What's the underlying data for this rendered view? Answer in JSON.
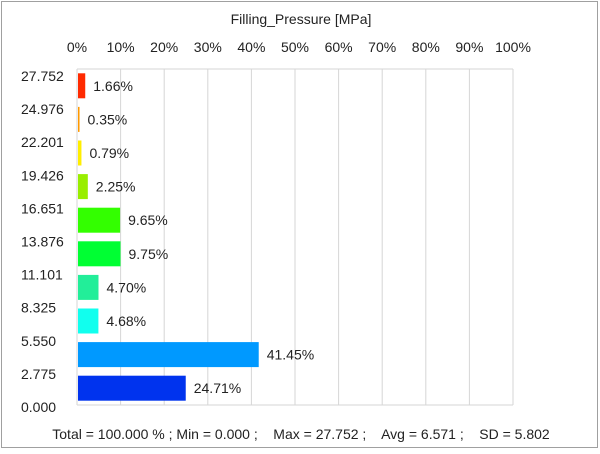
{
  "chart_data": {
    "type": "bar",
    "orientation": "horizontal",
    "title": "Filling_Pressure [MPa]",
    "x_ticks": [
      "0%",
      "10%",
      "20%",
      "30%",
      "40%",
      "50%",
      "60%",
      "70%",
      "80%",
      "90%",
      "100%"
    ],
    "xlim": [
      0,
      100
    ],
    "y_ticks": [
      "27.752",
      "24.976",
      "22.201",
      "19.426",
      "16.651",
      "13.876",
      "11.101",
      "8.325",
      "5.550",
      "2.775",
      "0.000"
    ],
    "bars": [
      {
        "value": 1.66,
        "label": "1.66%",
        "color": "#ff2a00"
      },
      {
        "value": 0.35,
        "label": "0.35%",
        "color": "#ff9900"
      },
      {
        "value": 0.79,
        "label": "0.79%",
        "color": "#ffee00"
      },
      {
        "value": 2.25,
        "label": "2.25%",
        "color": "#99ee00"
      },
      {
        "value": 9.65,
        "label": "9.65%",
        "color": "#33ff00"
      },
      {
        "value": 9.75,
        "label": "9.75%",
        "color": "#00ff33"
      },
      {
        "value": 4.7,
        "label": "4.70%",
        "color": "#22ee99"
      },
      {
        "value": 4.68,
        "label": "4.68%",
        "color": "#11ffee"
      },
      {
        "value": 41.45,
        "label": "41.45%",
        "color": "#0099ff"
      },
      {
        "value": 24.71,
        "label": "24.71%",
        "color": "#0033ee"
      }
    ],
    "grid": true
  },
  "footer": "Total = 100.000 % ; Min = 0.000 ;    Max = 27.752 ;    Avg = 6.571 ;    SD = 5.802"
}
